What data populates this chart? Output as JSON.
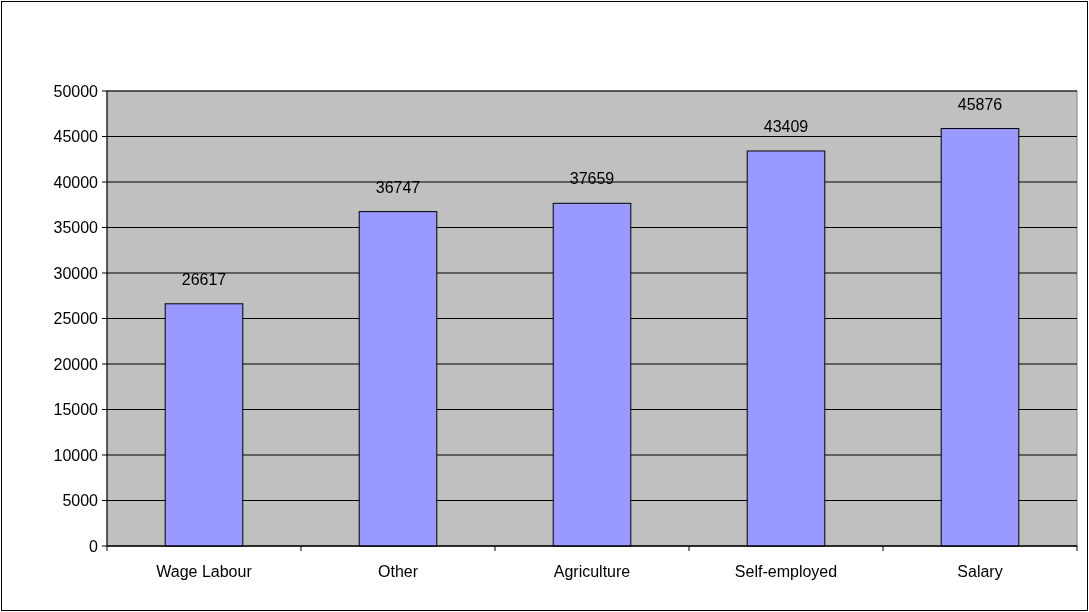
{
  "chart_data": {
    "type": "bar",
    "categories": [
      "Wage Labour",
      "Other",
      "Agriculture",
      "Self-employed",
      "Salary"
    ],
    "values": [
      26617,
      36747,
      37659,
      43409,
      45876
    ],
    "color": "#9999ff",
    "ylim": [
      0,
      50000
    ],
    "yticks": [
      0,
      5000,
      10000,
      15000,
      20000,
      25000,
      30000,
      35000,
      40000,
      45000,
      50000
    ],
    "grid": "y",
    "data_labels": true
  }
}
